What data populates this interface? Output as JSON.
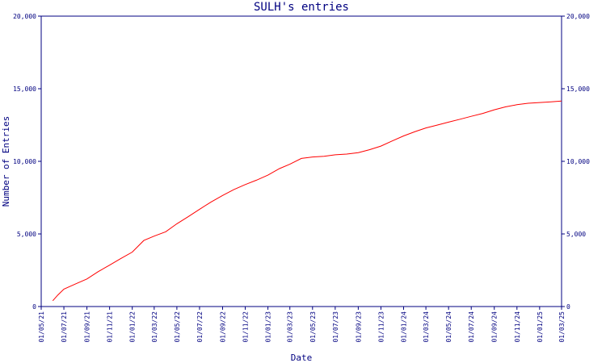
{
  "chart_data": {
    "type": "line",
    "title": "SULH's entries",
    "xlabel": "Date",
    "ylabel": "Number of Entries",
    "ylim": [
      0,
      20000
    ],
    "y_ticks": [
      {
        "value": 0,
        "label": "0"
      },
      {
        "value": 5000,
        "label": "5,000"
      },
      {
        "value": 10000,
        "label": "10,000"
      },
      {
        "value": 15000,
        "label": "15,000"
      },
      {
        "value": 20000,
        "label": "20,000"
      }
    ],
    "x_ticks": [
      "01/05/21",
      "01/07/21",
      "01/09/21",
      "01/11/21",
      "01/01/22",
      "01/03/22",
      "01/05/22",
      "01/07/22",
      "01/09/22",
      "01/11/22",
      "01/01/23",
      "01/03/23",
      "01/05/23",
      "01/07/23",
      "01/09/23",
      "01/11/23",
      "01/01/24",
      "01/03/24",
      "01/05/24",
      "01/07/24",
      "01/09/24",
      "01/11/24",
      "01/01/25",
      "01/03/25"
    ],
    "grid": false,
    "colors": {
      "axes": "#000080",
      "line": "#ff0000"
    },
    "series": [
      {
        "x": [
          "2021-06-01",
          "2021-06-15",
          "2021-07-01",
          "2021-08-01",
          "2021-09-01",
          "2021-10-01",
          "2021-11-01",
          "2021-12-01",
          "2022-01-01",
          "2022-02-01",
          "2022-03-01",
          "2022-04-01",
          "2022-05-01",
          "2022-06-01",
          "2022-07-01",
          "2022-08-01",
          "2022-09-01",
          "2022-10-01",
          "2022-11-01",
          "2022-12-01",
          "2023-01-01",
          "2023-02-01",
          "2023-03-01",
          "2023-04-01",
          "2023-05-01",
          "2023-06-01",
          "2023-07-01",
          "2023-08-01",
          "2023-09-01",
          "2023-10-01",
          "2023-11-01",
          "2023-12-01",
          "2024-01-01",
          "2024-02-01",
          "2024-03-01",
          "2024-04-01",
          "2024-05-01",
          "2024-06-01",
          "2024-07-01",
          "2024-08-01",
          "2024-09-01",
          "2024-10-01",
          "2024-11-01",
          "2024-12-01",
          "2025-01-01",
          "2025-02-01",
          "2025-03-01"
        ],
        "values": [
          400,
          800,
          1200,
          1550,
          1900,
          2400,
          2850,
          3300,
          3750,
          4550,
          4850,
          5150,
          5700,
          6200,
          6700,
          7200,
          7650,
          8050,
          8400,
          8700,
          9050,
          9500,
          9800,
          10200,
          10300,
          10350,
          10450,
          10500,
          10600,
          10800,
          11050,
          11400,
          11750,
          12050,
          12300,
          12500,
          12700,
          12900,
          13100,
          13300,
          13550,
          13750,
          13900,
          14000,
          14050,
          14100,
          14150
        ]
      }
    ]
  }
}
